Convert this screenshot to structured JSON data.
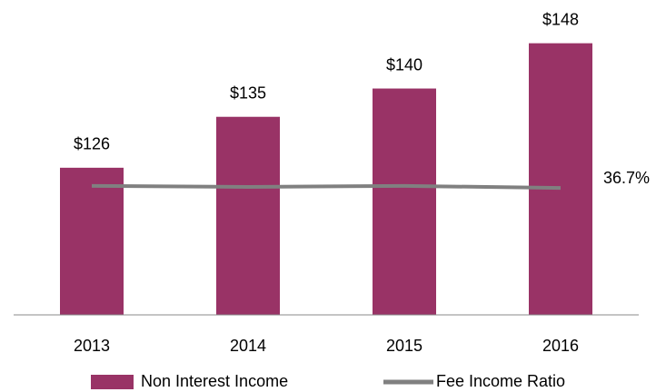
{
  "chart_data": {
    "type": "bar",
    "categories": [
      "2013",
      "2014",
      "2015",
      "2016"
    ],
    "series": [
      {
        "name": "Non Interest Income",
        "type": "bar",
        "color": "#993366",
        "values": [
          126,
          135,
          140,
          148
        ],
        "value_labels": [
          "$126",
          "$135",
          "$140",
          "$148"
        ]
      },
      {
        "name": "Fee Income Ratio",
        "type": "line",
        "axis": "y2",
        "color": "#808080",
        "values": [
          37.3,
          37.0,
          37.3,
          36.7
        ],
        "value_labels": [
          null,
          null,
          null,
          "36.7%"
        ]
      }
    ],
    "ylim": [
      100,
      155
    ],
    "y2lim": [
      0,
      90
    ],
    "legend": "bottom"
  }
}
